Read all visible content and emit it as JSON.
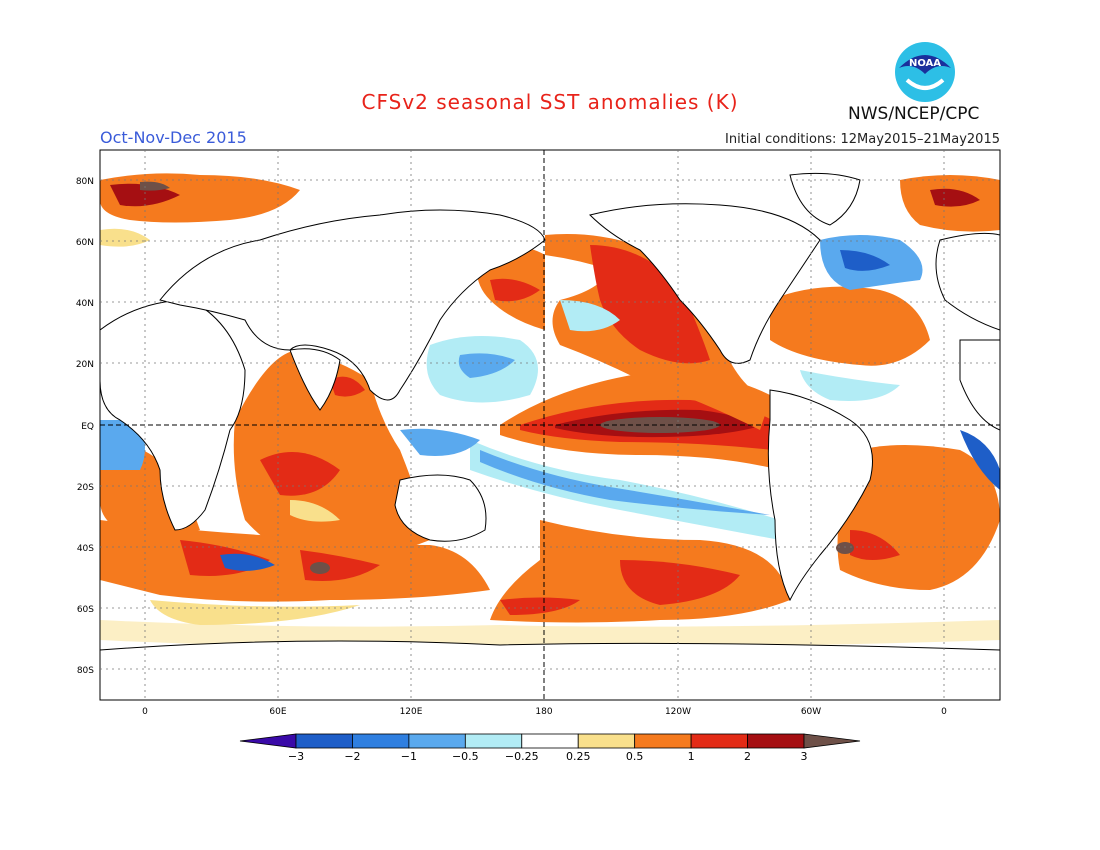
{
  "title": "CFSv2 seasonal SST anomalies (K)",
  "season": "Oct-Nov-Dec 2015",
  "initial_conditions": "Initial conditions: 12May2015–21May2015",
  "agency": "NWS/NCEP/CPC",
  "logo_text": "NOAA",
  "lat_labels": [
    "80N",
    "60N",
    "40N",
    "20N",
    "EQ",
    "20S",
    "40S",
    "60S",
    "80S"
  ],
  "lon_labels": [
    "0",
    "60E",
    "120E",
    "180",
    "120W",
    "60W",
    "0"
  ],
  "colorbar": {
    "labels": [
      "−3",
      "−2",
      "−1",
      "−0.5",
      "−0.25",
      "0.25",
      "0.5",
      "1",
      "2",
      "3"
    ],
    "colors": [
      "#3a0aa8",
      "#1e5ec8",
      "#2f7fe0",
      "#5aa9ee",
      "#b2ecf5",
      "#ffffff",
      "#f9e08c",
      "#f57a1e",
      "#e32b16",
      "#a50f12",
      "#6e5048"
    ]
  }
}
